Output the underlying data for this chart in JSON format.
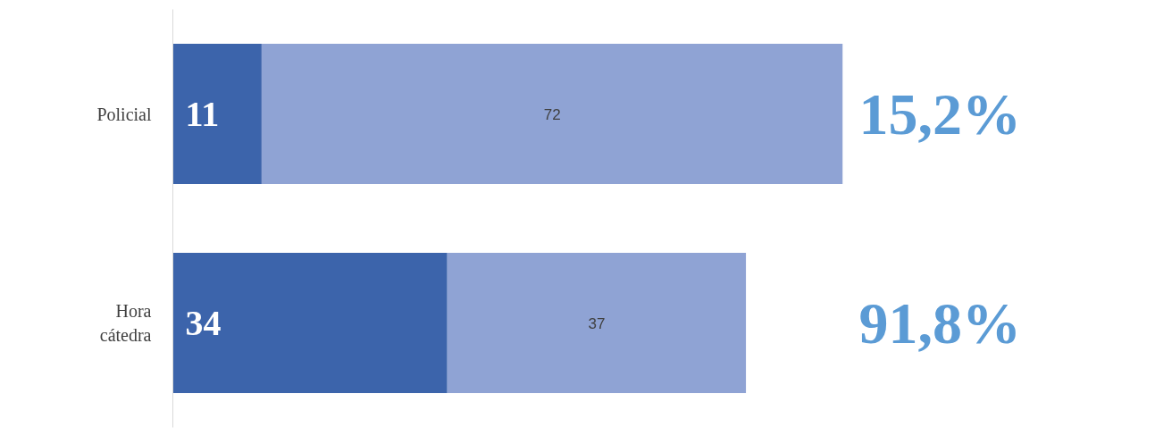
{
  "chart_data": {
    "type": "bar",
    "orientation": "horizontal",
    "stacked": true,
    "categories": [
      "Policial",
      "Hora cátedra"
    ],
    "series": [
      {
        "color": "#3c64ab",
        "values": [
          11,
          34
        ]
      },
      {
        "color": "#8fa3d4",
        "values": [
          72,
          37
        ]
      }
    ],
    "data_labels": true,
    "tick_labels": "y",
    "annotations": [
      "15,2%",
      "91,8%"
    ],
    "grid": false
  }
}
